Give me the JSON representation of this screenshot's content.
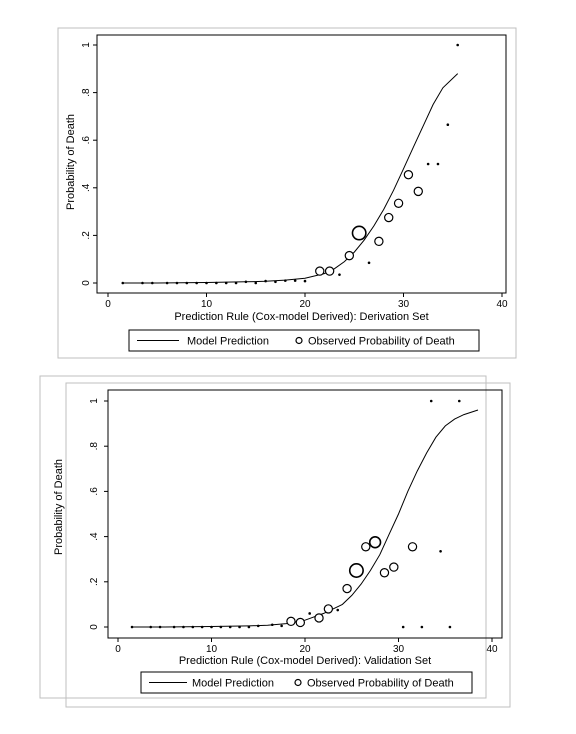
{
  "chart_data": [
    {
      "type": "scatter",
      "xlabel": "Prediction Rule (Cox-model Derived): Derivation Set",
      "ylabel": "Probability of Death",
      "xlim": [
        0,
        40
      ],
      "ylim": [
        0,
        1
      ],
      "x_ticks": [
        0,
        10,
        20,
        30,
        40
      ],
      "y_ticks": [
        0,
        0.2,
        0.4,
        0.6,
        0.8,
        1
      ],
      "y_tick_labels": [
        "0",
        ".2",
        ".4",
        ".6",
        ".8",
        "1"
      ],
      "legend_position": "bottom",
      "series": [
        {
          "name": "Model Prediction",
          "kind": "line",
          "x": [
            1.5,
            5,
            10,
            14,
            16,
            18,
            20,
            21,
            22,
            23,
            24,
            25,
            26,
            27,
            28,
            29,
            30,
            31,
            32,
            33,
            34,
            35.5
          ],
          "y": [
            0,
            0,
            0.002,
            0.005,
            0.007,
            0.012,
            0.02,
            0.03,
            0.04,
            0.06,
            0.09,
            0.13,
            0.18,
            0.24,
            0.31,
            0.39,
            0.48,
            0.57,
            0.66,
            0.75,
            0.82,
            0.88
          ]
        },
        {
          "name": "Observed Probability of Death",
          "kind": "points",
          "x": [
            1.5,
            3.5,
            4.5,
            6,
            7,
            8,
            9,
            10,
            11,
            12,
            13,
            14,
            15,
            16,
            17,
            18,
            19,
            20,
            21.5,
            22.5,
            23.5,
            24.5,
            25.5,
            26.5,
            27.5,
            28.5,
            29.5,
            30.5,
            31.5,
            32.5,
            33.5,
            34.5,
            35.5
          ],
          "y": [
            0,
            0,
            0,
            0,
            0,
            0,
            0,
            0,
            0,
            0,
            0,
            0.005,
            0,
            0.008,
            0.005,
            0.01,
            0.01,
            0.008,
            0.05,
            0.05,
            0.035,
            0.115,
            0.21,
            0.085,
            0.175,
            0.275,
            0.335,
            0.455,
            0.385,
            0.5,
            0.5,
            0.665,
            1
          ],
          "size": [
            1,
            1,
            1,
            1,
            1,
            1,
            1,
            1,
            1,
            1,
            1,
            1,
            1,
            1,
            1,
            1,
            1,
            1,
            2,
            2,
            1,
            2,
            4,
            1,
            2,
            2,
            2,
            2,
            2,
            1,
            1,
            1,
            1
          ]
        }
      ]
    },
    {
      "type": "scatter",
      "xlabel": "Prediction Rule (Cox-model Derived): Validation Set",
      "ylabel": "Probability of Death",
      "xlim": [
        0,
        40
      ],
      "ylim": [
        0,
        1
      ],
      "x_ticks": [
        0,
        10,
        20,
        30,
        40
      ],
      "y_ticks": [
        0,
        0.2,
        0.4,
        0.6,
        0.8,
        1
      ],
      "y_tick_labels": [
        "0",
        ".2",
        ".4",
        ".6",
        ".8",
        "1"
      ],
      "legend_position": "bottom",
      "series": [
        {
          "name": "Model Prediction",
          "kind": "line",
          "x": [
            1.5,
            5,
            10,
            14,
            16,
            18,
            20,
            22,
            24,
            25,
            26,
            27,
            28,
            29,
            30,
            31,
            32,
            33,
            34,
            35,
            36,
            37,
            38.5
          ],
          "y": [
            0,
            0,
            0.002,
            0.005,
            0.008,
            0.015,
            0.03,
            0.06,
            0.1,
            0.14,
            0.19,
            0.25,
            0.32,
            0.41,
            0.5,
            0.6,
            0.69,
            0.77,
            0.84,
            0.89,
            0.92,
            0.94,
            0.96
          ]
        },
        {
          "name": "Observed Probability of Death",
          "kind": "points",
          "x": [
            1.5,
            3.5,
            4.5,
            6,
            7,
            8,
            9,
            10,
            11,
            12,
            13,
            14,
            15,
            16.5,
            17.5,
            18.5,
            19.5,
            20.5,
            21.5,
            22.5,
            23.5,
            24.5,
            25.5,
            26.5,
            27.5,
            28.5,
            29.5,
            30.5,
            31.5,
            32.5,
            33.5,
            34.5,
            35.5,
            36.5
          ],
          "y": [
            0,
            0,
            0,
            0,
            0,
            0,
            0,
            0,
            0,
            0,
            0,
            0,
            0.005,
            0.01,
            0.005,
            0.025,
            0.02,
            0.06,
            0.04,
            0.08,
            0.075,
            0.17,
            0.25,
            0.355,
            0.375,
            0.24,
            0.265,
            0,
            0.355,
            0,
            1,
            0.335,
            0,
            1
          ],
          "size": [
            1,
            1,
            1,
            1,
            1,
            1,
            1,
            1,
            1,
            1,
            1,
            1,
            1,
            1,
            1,
            2,
            2,
            1,
            2,
            2,
            1,
            2,
            4,
            2,
            3,
            2,
            2,
            1,
            2,
            1,
            1,
            1,
            1,
            1
          ]
        }
      ]
    }
  ]
}
